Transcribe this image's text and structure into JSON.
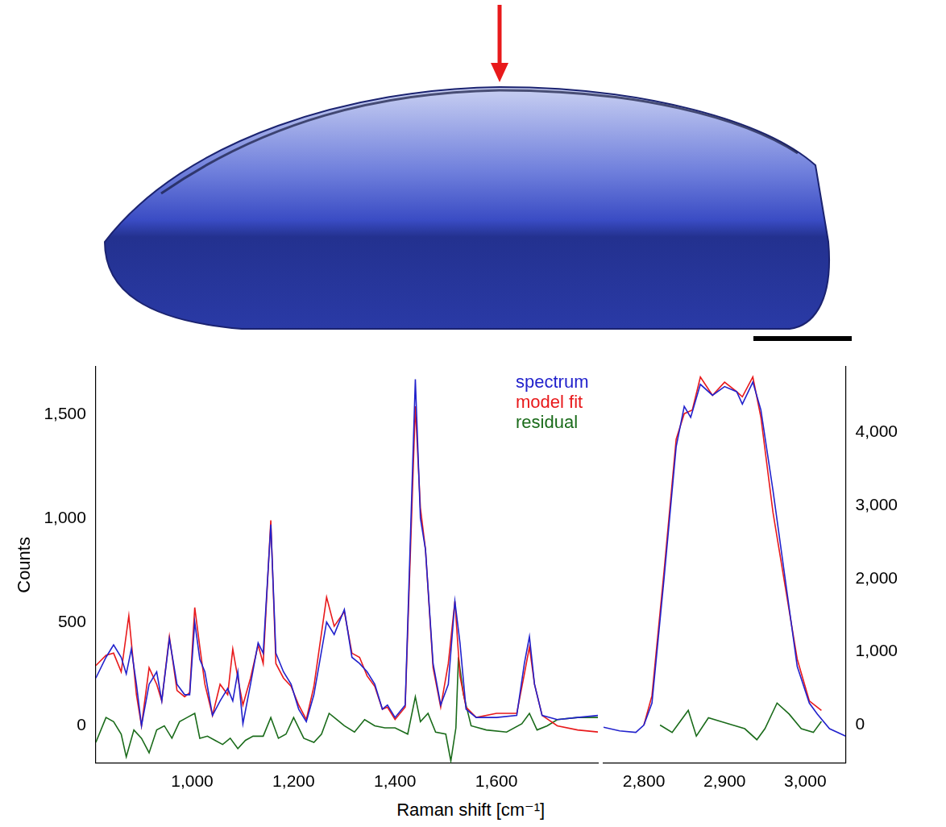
{
  "chart_data": [
    {
      "type": "line",
      "y_label": "Counts",
      "x_label": "Raman shift [cm⁻¹]",
      "legend": "upper right",
      "grid": false,
      "xlim": [
        810,
        1800
      ],
      "xticks": [
        1000,
        1200,
        1400,
        1600
      ],
      "ylim": [
        -180,
        1730
      ],
      "yticks": [
        0,
        500,
        1000,
        1500
      ],
      "series": [
        {
          "name": "spectrum",
          "color": "#2222cc",
          "x": [
            810,
            830,
            845,
            860,
            870,
            880,
            890,
            900,
            915,
            930,
            940,
            955,
            970,
            985,
            995,
            1005,
            1015,
            1025,
            1040,
            1055,
            1070,
            1080,
            1090,
            1100,
            1115,
            1130,
            1140,
            1155,
            1165,
            1180,
            1195,
            1210,
            1225,
            1240,
            1265,
            1280,
            1300,
            1315,
            1330,
            1345,
            1360,
            1375,
            1385,
            1400,
            1420,
            1440,
            1450,
            1460,
            1475,
            1490,
            1505,
            1518,
            1528,
            1540,
            1560,
            1600,
            1640,
            1655,
            1665,
            1675,
            1690,
            1720,
            1760,
            1800
          ],
          "values": [
            230,
            330,
            390,
            330,
            250,
            370,
            200,
            0,
            200,
            260,
            120,
            420,
            200,
            150,
            150,
            500,
            320,
            260,
            50,
            120,
            180,
            120,
            260,
            10,
            200,
            400,
            350,
            970,
            350,
            260,
            200,
            80,
            20,
            150,
            500,
            440,
            560,
            330,
            300,
            260,
            200,
            80,
            100,
            40,
            100,
            1670,
            1000,
            850,
            300,
            100,
            200,
            600,
            400,
            80,
            40,
            40,
            50,
            300,
            430,
            200,
            50,
            30,
            40,
            50
          ]
        },
        {
          "name": "model fit",
          "color": "#e8191b",
          "x": [
            810,
            830,
            845,
            860,
            875,
            890,
            900,
            915,
            930,
            940,
            955,
            970,
            985,
            995,
            1005,
            1015,
            1025,
            1040,
            1055,
            1070,
            1080,
            1090,
            1100,
            1115,
            1130,
            1140,
            1155,
            1165,
            1180,
            1195,
            1210,
            1225,
            1240,
            1265,
            1280,
            1300,
            1315,
            1330,
            1345,
            1360,
            1375,
            1385,
            1400,
            1420,
            1440,
            1450,
            1460,
            1475,
            1490,
            1505,
            1518,
            1528,
            1540,
            1560,
            1600,
            1640,
            1655,
            1665,
            1675,
            1690,
            1720,
            1760,
            1800
          ],
          "values": [
            290,
            340,
            350,
            260,
            530,
            150,
            0,
            280,
            200,
            120,
            430,
            170,
            140,
            160,
            570,
            380,
            200,
            50,
            200,
            150,
            370,
            230,
            100,
            230,
            390,
            300,
            990,
            300,
            230,
            190,
            100,
            30,
            190,
            620,
            480,
            550,
            350,
            330,
            240,
            190,
            80,
            90,
            30,
            90,
            1540,
            1050,
            850,
            280,
            90,
            300,
            600,
            240,
            90,
            40,
            60,
            60,
            250,
            380,
            200,
            50,
            0,
            -20,
            -30
          ]
        },
        {
          "name": "residual",
          "color": "#1a6b1a",
          "x": [
            810,
            830,
            845,
            860,
            870,
            885,
            900,
            915,
            930,
            945,
            960,
            975,
            990,
            1005,
            1015,
            1030,
            1045,
            1060,
            1075,
            1090,
            1105,
            1120,
            1140,
            1155,
            1170,
            1185,
            1200,
            1220,
            1240,
            1255,
            1270,
            1285,
            1300,
            1320,
            1340,
            1360,
            1380,
            1400,
            1425,
            1440,
            1450,
            1465,
            1480,
            1500,
            1510,
            1520,
            1525,
            1535,
            1550,
            1580,
            1620,
            1650,
            1665,
            1680,
            1700,
            1720,
            1760,
            1800
          ],
          "values": [
            -80,
            40,
            20,
            -40,
            -150,
            -20,
            -60,
            -130,
            -20,
            0,
            -60,
            20,
            40,
            60,
            -60,
            -50,
            -70,
            -90,
            -60,
            -110,
            -70,
            -50,
            -50,
            40,
            -60,
            -40,
            40,
            -60,
            -80,
            -40,
            60,
            30,
            0,
            -30,
            30,
            0,
            -10,
            -10,
            -40,
            140,
            20,
            60,
            -30,
            -40,
            -170,
            -10,
            330,
            150,
            0,
            -20,
            -30,
            10,
            60,
            -20,
            0,
            30,
            40,
            40
          ]
        }
      ]
    },
    {
      "type": "line",
      "grid": false,
      "xlim": [
        2750,
        3050
      ],
      "xticks": [
        2800,
        2900,
        3000
      ],
      "ylim": [
        -520,
        4890
      ],
      "yticks": [
        0,
        1000,
        2000,
        3000,
        4000
      ],
      "series": [
        {
          "name": "spectrum",
          "color": "#2222cc",
          "x": [
            2750,
            2770,
            2790,
            2800,
            2810,
            2825,
            2840,
            2850,
            2858,
            2870,
            2885,
            2900,
            2915,
            2922,
            2935,
            2945,
            2960,
            2975,
            2990,
            3005,
            3015,
            3030,
            3050
          ],
          "values": [
            -30,
            -80,
            -100,
            0,
            300,
            2000,
            3800,
            4350,
            4200,
            4650,
            4500,
            4620,
            4550,
            4380,
            4680,
            4300,
            3200,
            2000,
            800,
            300,
            150,
            -50,
            -150
          ]
        },
        {
          "name": "model fit",
          "color": "#e8191b",
          "x": [
            2800,
            2810,
            2825,
            2840,
            2850,
            2860,
            2870,
            2885,
            2900,
            2915,
            2922,
            2935,
            2945,
            2960,
            2975,
            2990,
            3005,
            3020
          ],
          "values": [
            0,
            400,
            2100,
            3900,
            4250,
            4300,
            4750,
            4500,
            4680,
            4550,
            4480,
            4750,
            4200,
            2900,
            1900,
            900,
            330,
            200
          ]
        },
        {
          "name": "residual",
          "color": "#1a6b1a",
          "x": [
            2820,
            2835,
            2845,
            2855,
            2865,
            2880,
            2895,
            2910,
            2925,
            2940,
            2950,
            2965,
            2980,
            2995,
            3010,
            3020
          ],
          "values": [
            0,
            -100,
            50,
            200,
            -150,
            100,
            50,
            0,
            -50,
            -200,
            -50,
            300,
            150,
            -50,
            -100,
            50
          ]
        }
      ]
    }
  ]
}
